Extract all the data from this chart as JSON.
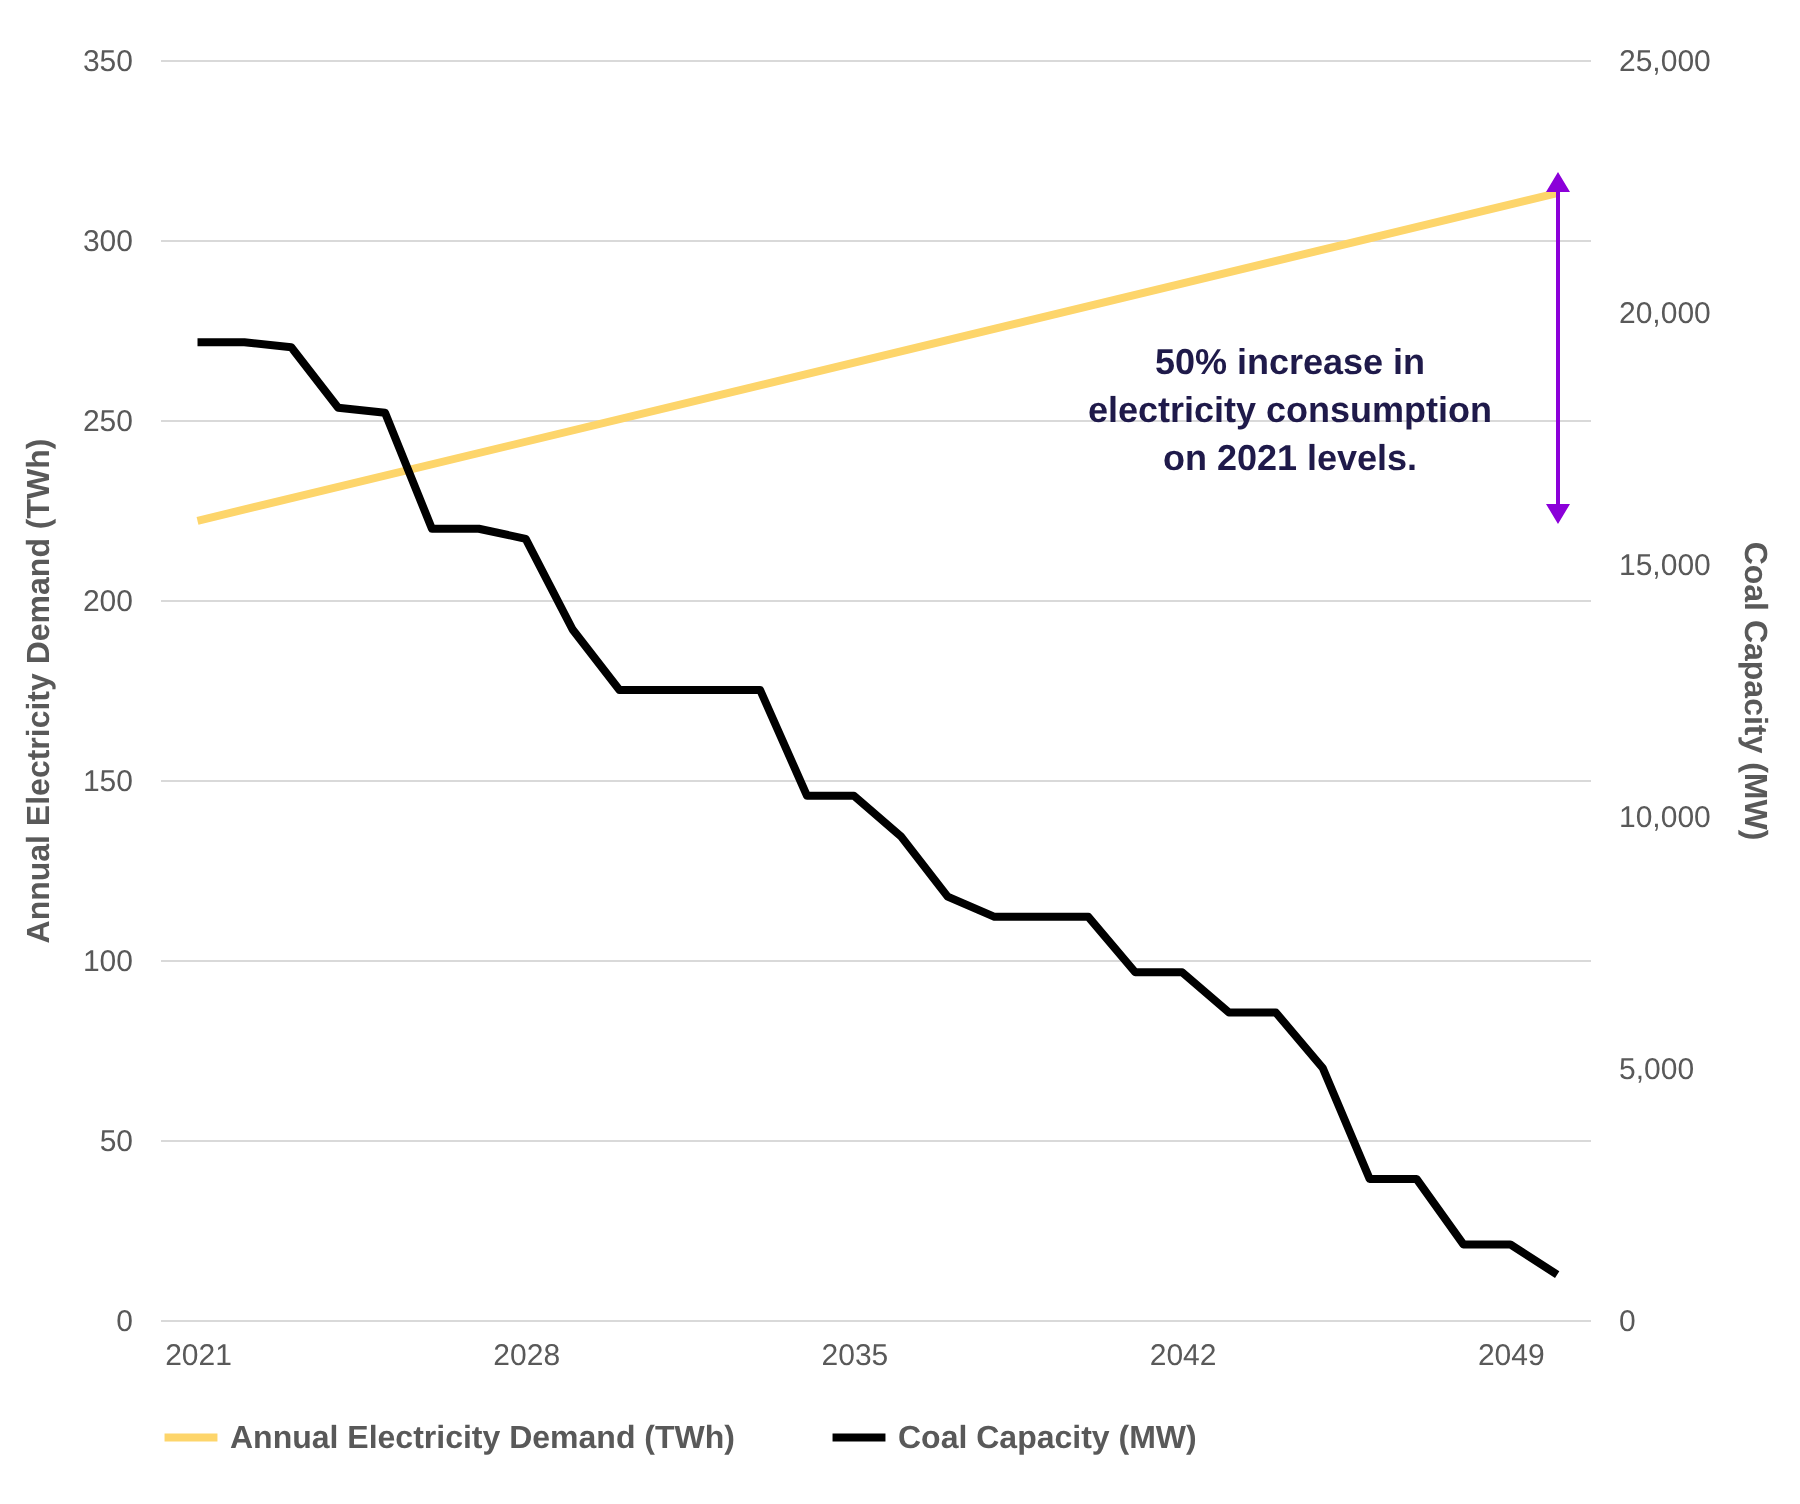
{
  "chart_data": {
    "type": "line",
    "xlim": [
      2020.2,
      2050.7
    ],
    "xticks": [
      2021,
      2028,
      2035,
      2042,
      2049
    ],
    "ylim": [
      0,
      350
    ],
    "yticks": [
      0,
      50,
      100,
      150,
      200,
      250,
      300,
      350
    ],
    "y2lim": [
      0,
      25000
    ],
    "y2ticks": [
      {
        "value": 0,
        "label": "0"
      },
      {
        "value": 5000,
        "label": "5,000"
      },
      {
        "value": 10000,
        "label": "10,000"
      },
      {
        "value": 15000,
        "label": "15,000"
      },
      {
        "value": 20000,
        "label": "20,000"
      },
      {
        "value": 25000,
        "label": "25,000"
      }
    ],
    "ylabel": "Annual Electricity Demand (TWh)",
    "y2label": "Coal Capacity (MW)",
    "grid": "y",
    "legend": "bottom",
    "line_style": "solid",
    "marker": "none",
    "annotations": [
      "50% increase in\nelectricity consumption\non 2021 levels."
    ],
    "series": [
      {
        "name": "Annual Electricity Demand (TWh)",
        "color": "#fdd56b",
        "x": [
          2021,
          2050
        ],
        "values": [
          222,
          313
        ]
      },
      {
        "name": "Coal Capacity (MW)",
        "color": "#000000",
        "axis": "y2",
        "x": [
          2021,
          2022,
          2023,
          2024,
          2025,
          2026,
          2027,
          2028,
          2029,
          2030,
          2031,
          2032,
          2033,
          2034,
          2035,
          2036,
          2037,
          2038,
          2039,
          2040,
          2041,
          2042,
          2043,
          2044,
          2045,
          2046,
          2047,
          2048,
          2049,
          2050
        ],
        "values": [
          19400,
          19400,
          19300,
          18100,
          18000,
          15700,
          15700,
          15500,
          13700,
          12500,
          12500,
          12500,
          12500,
          10400,
          10400,
          9600,
          8400,
          8000,
          8000,
          8000,
          6900,
          6900,
          6100,
          6100,
          5000,
          2800,
          2800,
          1500,
          1500,
          900
        ]
      }
    ]
  }
}
